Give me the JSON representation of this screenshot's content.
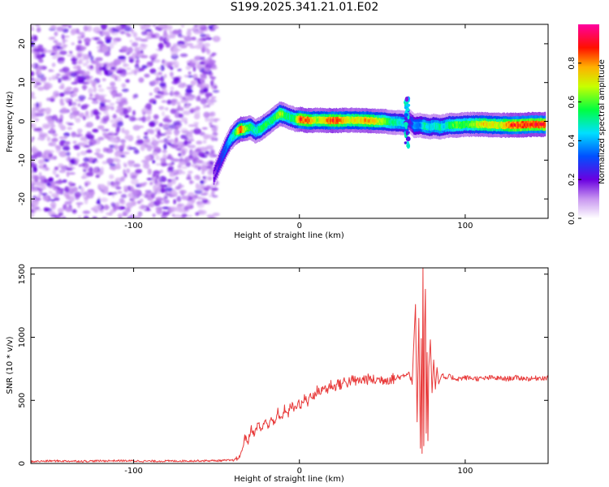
{
  "title": "S199.2025.341.21.01.E02",
  "chart_data": [
    {
      "type": "heatmap",
      "name": "spectrogram",
      "xlabel": "Height of straight line (km)",
      "ylabel": "Frequency (Hz)",
      "xlim": [
        -162,
        150
      ],
      "ylim": [
        -25,
        25
      ],
      "xticks": [
        -100,
        0,
        100
      ],
      "xtick_labels": [
        "-100",
        "0",
        "100"
      ],
      "yticks": [
        -20,
        -10,
        0,
        10,
        20
      ],
      "ytick_labels": [
        "-20",
        "-10",
        "0",
        "10",
        "20"
      ],
      "noise_region_x": [
        -162,
        -50
      ],
      "ridge": {
        "x": [
          -52,
          -48,
          -45,
          -42,
          -39,
          -36,
          -33,
          -30,
          -27,
          -24,
          -21,
          -18,
          -15,
          -12,
          -9,
          -6,
          -3,
          0,
          5,
          10,
          20,
          30,
          40,
          50,
          55,
          60,
          63,
          66,
          69,
          72,
          75,
          78,
          81,
          84,
          87,
          90,
          95,
          100,
          110,
          120,
          130,
          140,
          148
        ],
        "y": [
          -14,
          -10,
          -7,
          -4.5,
          -3,
          -2,
          -2,
          -1.5,
          -2.5,
          -2,
          -1,
          0,
          1,
          2,
          1.5,
          1,
          0.5,
          0.5,
          0.2,
          0.3,
          0.2,
          0.3,
          0.2,
          0,
          -0.2,
          -0.3,
          -0.5,
          0,
          -1.2,
          -1,
          -1.2,
          -1.5,
          -1.2,
          -1.5,
          -1.3,
          -1,
          -1,
          -0.8,
          -0.8,
          -1,
          -1,
          -0.8,
          -0.8
        ],
        "amplitude": [
          0.15,
          0.25,
          0.35,
          0.45,
          0.6,
          0.95,
          0.7,
          0.6,
          0.5,
          0.6,
          0.6,
          0.55,
          0.6,
          0.75,
          0.6,
          0.55,
          0.6,
          0.95,
          0.9,
          0.7,
          0.95,
          0.75,
          0.85,
          0.7,
          0.55,
          0.5,
          0.45,
          0.2,
          0.4,
          0.35,
          0.55,
          0.45,
          0.5,
          0.55,
          0.45,
          0.6,
          0.65,
          0.6,
          0.8,
          0.75,
          0.95,
          0.95,
          0.95
        ]
      },
      "burst_x": 65,
      "burst_y_range": [
        -8,
        6
      ],
      "colorbar": {
        "label": "Normalized spectral amplitude",
        "range": [
          0,
          1
        ],
        "ticks": [
          0.0,
          0.2,
          0.4,
          0.6,
          0.8
        ],
        "tick_labels": [
          "0.0",
          "0.2",
          "0.4",
          "0.6",
          "0.8"
        ]
      }
    },
    {
      "type": "line",
      "name": "snr",
      "xlabel": "Height of straight line (km)",
      "ylabel": "SNR (10 * v/v)",
      "xlim": [
        -162,
        150
      ],
      "ylim": [
        0,
        1550
      ],
      "xticks": [
        -100,
        0,
        100
      ],
      "xtick_labels": [
        "-100",
        "0",
        "100"
      ],
      "yticks": [
        0,
        500,
        1000,
        1500
      ],
      "ytick_labels": [
        "0",
        "500",
        "1000",
        "1500"
      ],
      "color": "#e83a3a",
      "series": [
        {
          "name": "SNR",
          "x": [
            -162,
            -150,
            -130,
            -110,
            -90,
            -70,
            -50,
            -40,
            -37,
            -35,
            -33,
            -31,
            -29,
            -27,
            -25,
            -23,
            -21,
            -19,
            -17,
            -15,
            -13,
            -11,
            -9,
            -7,
            -5,
            -3,
            -1,
            1,
            3,
            5,
            7,
            9,
            11,
            13,
            15,
            17,
            19,
            21,
            23,
            25,
            27,
            29,
            31,
            35,
            40,
            45,
            50,
            55,
            60,
            63,
            66,
            68,
            69,
            70,
            71,
            72,
            73,
            73.5,
            74,
            74.5,
            75,
            75.5,
            76,
            76.5,
            77,
            77.5,
            78,
            79,
            80,
            81,
            82,
            83,
            84,
            86,
            88,
            90,
            95,
            100,
            105,
            110,
            115,
            120,
            125,
            130,
            135,
            140,
            145,
            150
          ],
          "y": [
            15,
            20,
            18,
            22,
            18,
            20,
            22,
            25,
            40,
            80,
            210,
            170,
            280,
            230,
            320,
            260,
            340,
            290,
            370,
            300,
            410,
            340,
            440,
            380,
            470,
            420,
            490,
            450,
            520,
            480,
            560,
            520,
            590,
            560,
            610,
            580,
            630,
            600,
            640,
            620,
            650,
            640,
            660,
            650,
            670,
            660,
            665,
            670,
            680,
            700,
            720,
            640,
            950,
            1260,
            330,
            1150,
            120,
            990,
            80,
            1550,
            140,
            1080,
            1380,
            240,
            880,
            180,
            760,
            980,
            560,
            820,
            590,
            760,
            630,
            710,
            660,
            690,
            670,
            680,
            675,
            670,
            680,
            675,
            670,
            680,
            675,
            670,
            680,
            675
          ]
        }
      ]
    }
  ]
}
